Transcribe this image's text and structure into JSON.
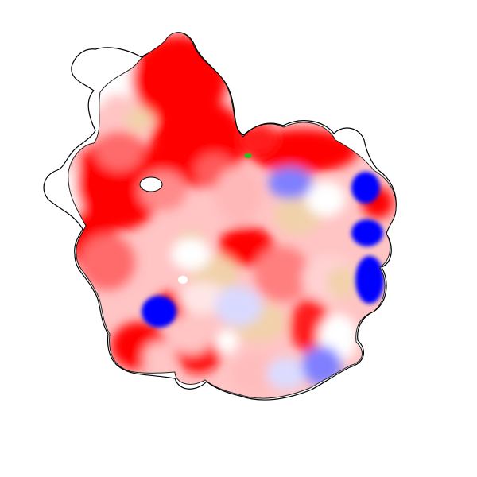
{
  "image": {
    "subject": "protein-surface",
    "colors": {
      "background": "#ffffff",
      "negative": "#ff0000",
      "negative_mid": "#ff6b6b",
      "negative_light": "#ffc4c4",
      "neutral_warm": "#f1d1aa",
      "neutral": "#ffffff",
      "positive_light": "#d9d9ff",
      "positive_mid": "#7f7fff",
      "positive": "#0000ff",
      "accent": "#26c21a",
      "outline": "#000000"
    }
  }
}
